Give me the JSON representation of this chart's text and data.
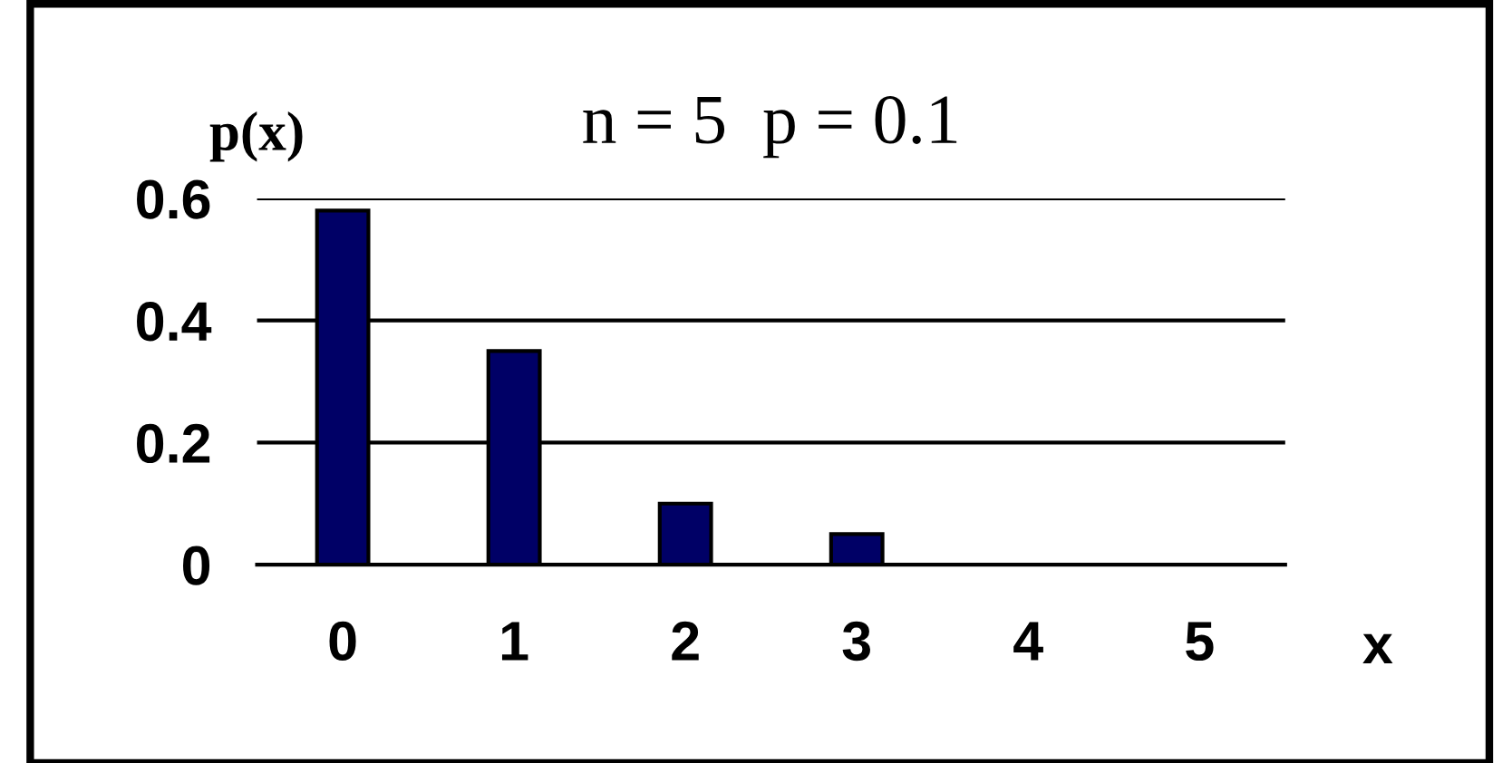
{
  "chart_data": {
    "type": "bar",
    "title": "n = 5  p = 0.1",
    "xlabel": "x",
    "ylabel": "p(x)",
    "categories": [
      "0",
      "1",
      "2",
      "3",
      "4",
      "5"
    ],
    "values": [
      0.58,
      0.35,
      0.1,
      0.05,
      0,
      0
    ],
    "color": "#000066",
    "ylim": [
      0,
      0.6
    ],
    "yticks": [
      0,
      0.2,
      0.4,
      0.6
    ],
    "grid": "y"
  }
}
